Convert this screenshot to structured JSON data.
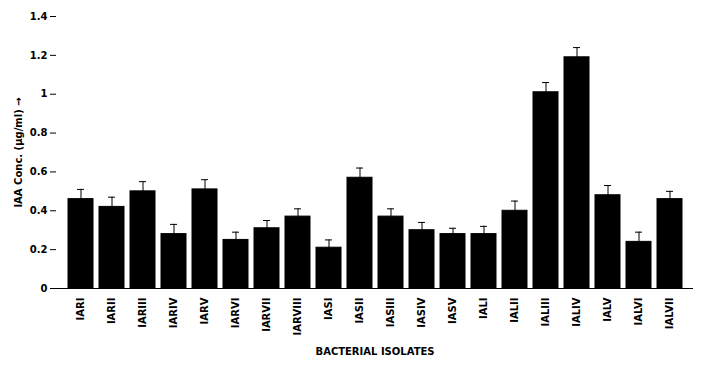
{
  "chart_data": {
    "type": "bar",
    "categories": [
      "IARI",
      "IARII",
      "IARIII",
      "IARIV",
      "IARV",
      "IARVI",
      "IARVII",
      "IARVIII",
      "IASI",
      "IASII",
      "IASIII",
      "IASIV",
      "IASV",
      "IALI",
      "IALII",
      "IALIII",
      "IALIV",
      "IALV",
      "IALVI",
      "IALVII"
    ],
    "values": [
      0.46,
      0.42,
      0.5,
      0.28,
      0.51,
      0.25,
      0.31,
      0.37,
      0.21,
      0.57,
      0.37,
      0.3,
      0.28,
      0.28,
      0.4,
      1.01,
      1.19,
      0.48,
      0.24,
      0.46
    ],
    "errors": [
      0.05,
      0.05,
      0.05,
      0.05,
      0.05,
      0.04,
      0.04,
      0.04,
      0.04,
      0.05,
      0.04,
      0.04,
      0.03,
      0.04,
      0.05,
      0.05,
      0.05,
      0.05,
      0.05,
      0.04
    ],
    "color": "#000000",
    "xlabel": "BACTERIAL ISOLATES",
    "ylabel": "IAA Conc. (μg/ml)",
    "ylim": [
      0,
      1.4
    ],
    "yticks": [
      0,
      0.2,
      0.4,
      0.6,
      0.8,
      1,
      1.2,
      1.4
    ],
    "grid": false
  }
}
